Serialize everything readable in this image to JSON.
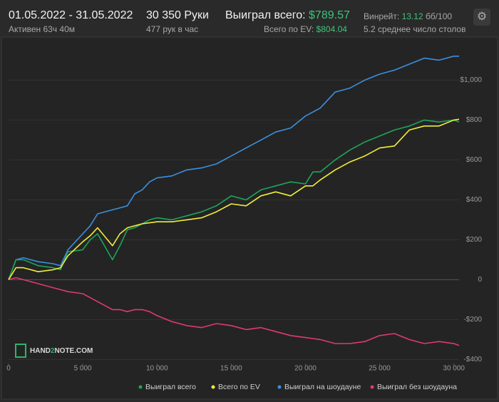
{
  "header": {
    "period": "01.05.2022 - 31.05.2022",
    "active": "Активен 63ч 40м",
    "hands": "30 350 Руки",
    "hands_per_hour": "477 рук в час",
    "won_label": "Выиграл всего:",
    "won_value": "$789.57",
    "ev_label": "Всего по EV:",
    "ev_value": "$804.04",
    "winrate_label": "Винрейт:",
    "winrate_value": "13.12",
    "winrate_unit": "бб/100",
    "tables": "5.2 среднее число столов"
  },
  "watermark": {
    "parts": [
      "HAND",
      "2",
      "NOTE.COM"
    ]
  },
  "chart_data": {
    "type": "line",
    "x": [
      0,
      500,
      1000,
      2000,
      3000,
      3500,
      4000,
      5000,
      5500,
      6000,
      7000,
      7500,
      8000,
      8500,
      9000,
      9500,
      10000,
      11000,
      12000,
      13000,
      14000,
      15000,
      16000,
      17000,
      18000,
      19000,
      20000,
      20500,
      21000,
      22000,
      23000,
      24000,
      25000,
      26000,
      27000,
      28000,
      29000,
      30000,
      30350
    ],
    "series": [
      {
        "name": "Выиграл всего",
        "color": "#1fa45a",
        "values": [
          0,
          100,
          100,
          70,
          60,
          50,
          140,
          150,
          200,
          230,
          100,
          170,
          250,
          260,
          280,
          300,
          310,
          300,
          320,
          340,
          370,
          420,
          400,
          450,
          470,
          490,
          480,
          540,
          540,
          600,
          650,
          690,
          720,
          750,
          770,
          800,
          790,
          800,
          790
        ]
      },
      {
        "name": "Всего по EV",
        "color": "#f1ee3a",
        "values": [
          0,
          60,
          60,
          40,
          50,
          60,
          120,
          190,
          220,
          260,
          170,
          230,
          260,
          270,
          280,
          285,
          290,
          290,
          300,
          310,
          340,
          380,
          370,
          420,
          440,
          420,
          470,
          470,
          500,
          550,
          590,
          620,
          660,
          670,
          750,
          770,
          770,
          800,
          804
        ]
      },
      {
        "name": "Выиграл на шоудауне",
        "color": "#3a8fe0",
        "values": [
          0,
          100,
          110,
          90,
          80,
          70,
          150,
          230,
          270,
          330,
          350,
          360,
          370,
          430,
          450,
          490,
          510,
          520,
          550,
          560,
          580,
          620,
          660,
          700,
          740,
          760,
          820,
          840,
          860,
          940,
          960,
          1000,
          1030,
          1050,
          1080,
          1110,
          1100,
          1120,
          1120
        ]
      },
      {
        "name": "Выиграл без шоудауна",
        "color": "#e03a6e",
        "values": [
          0,
          10,
          0,
          -20,
          -40,
          -50,
          -60,
          -70,
          -90,
          -110,
          -150,
          -150,
          -160,
          -150,
          -150,
          -160,
          -180,
          -210,
          -230,
          -240,
          -220,
          -230,
          -250,
          -240,
          -260,
          -280,
          -290,
          -295,
          -300,
          -320,
          -320,
          -310,
          -280,
          -270,
          -300,
          -320,
          -310,
          -320,
          -330
        ]
      }
    ],
    "xlim": [
      0,
      30350
    ],
    "ylim": [
      -420,
      1180
    ],
    "xticks": [
      0,
      {
        "value": 5000,
        "label": "5 000"
      },
      {
        "value": 10000,
        "label": "10 000"
      },
      {
        "value": 15000,
        "label": "15 000"
      },
      {
        "value": 20000,
        "label": "20 000"
      },
      {
        "value": 25000,
        "label": "25 000"
      },
      {
        "value": 30000,
        "label": "30 000"
      }
    ],
    "yticks": [
      {
        "value": -400,
        "label": "-$400"
      },
      {
        "value": -200,
        "label": "-$200"
      },
      0,
      {
        "value": 200,
        "label": "$200"
      },
      {
        "value": 400,
        "label": "$400"
      },
      {
        "value": 600,
        "label": "$600"
      },
      {
        "value": 800,
        "label": "$800"
      },
      {
        "value": 1000,
        "label": "$1,000"
      }
    ],
    "grid": true
  }
}
